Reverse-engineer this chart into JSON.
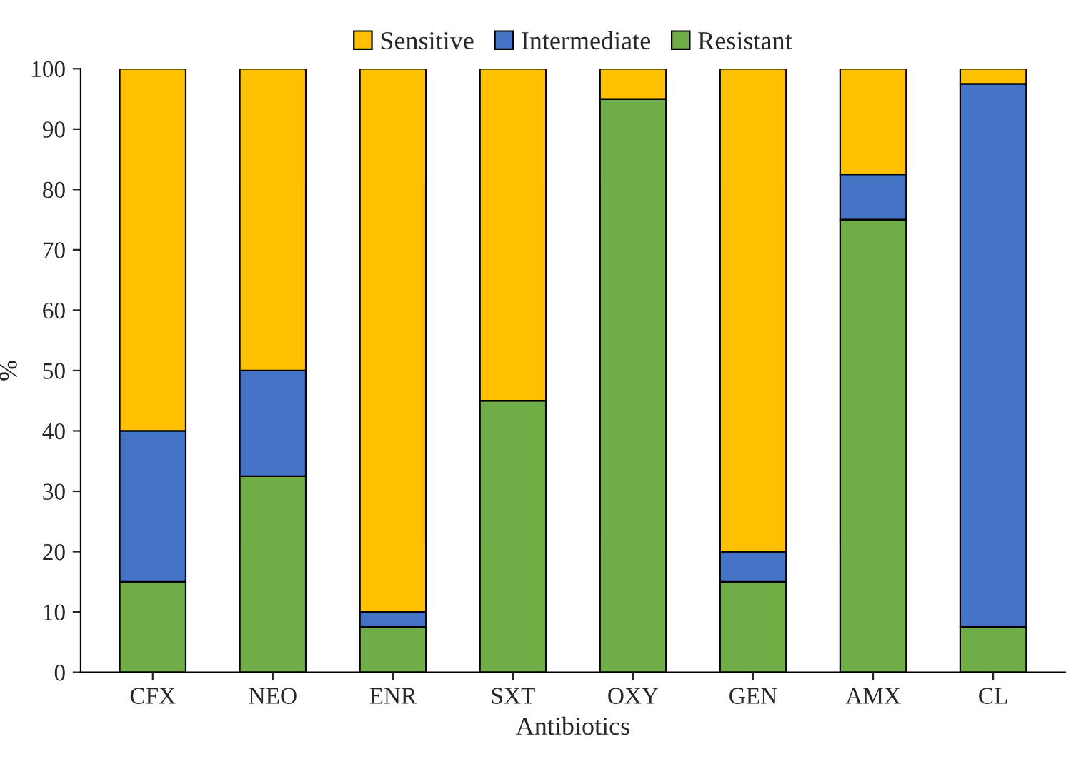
{
  "chart_data": {
    "type": "bar",
    "stacked": true,
    "xlabel": "Antibiotics",
    "ylabel": "%",
    "categories": [
      "CFX",
      "NEO",
      "ENR",
      "SXT",
      "OXY",
      "GEN",
      "AMX",
      "CL"
    ],
    "series": [
      {
        "name": "Resistant",
        "color": "#70ad47",
        "values": [
          15,
          32.5,
          7.5,
          45,
          95,
          15,
          75,
          7.5
        ]
      },
      {
        "name": "Intermediate",
        "color": "#4472c4",
        "values": [
          25,
          17.5,
          2.5,
          0,
          0,
          5,
          7.5,
          90
        ]
      },
      {
        "name": "Sensitive",
        "color": "#ffc000",
        "values": [
          60,
          50,
          90,
          55,
          5,
          80,
          17.5,
          2.5
        ]
      }
    ],
    "ylim": [
      0,
      100
    ],
    "yticks": [
      0,
      10,
      20,
      30,
      40,
      50,
      60,
      70,
      80,
      90,
      100
    ],
    "grid": false,
    "legend": "top"
  }
}
